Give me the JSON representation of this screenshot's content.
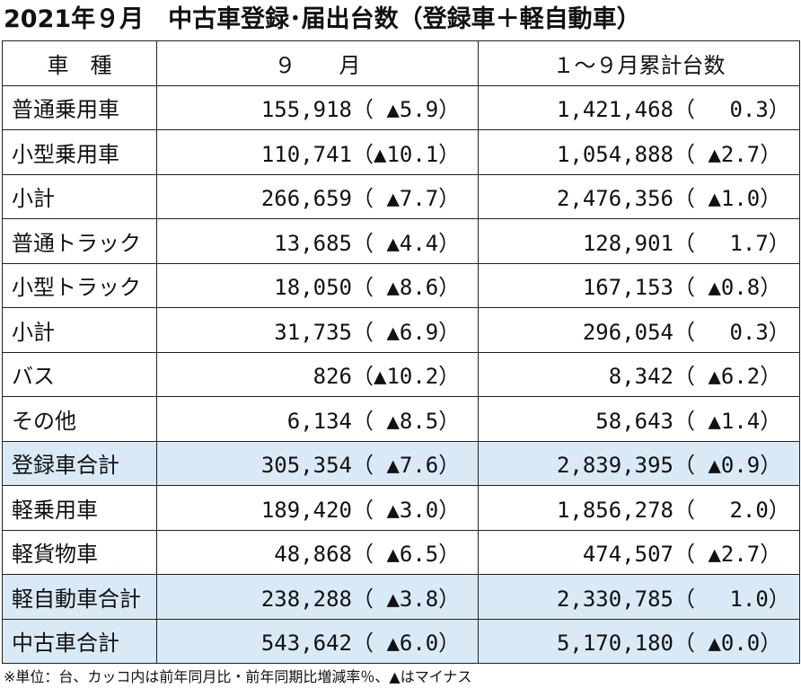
{
  "title": "2021年９月　中古車登録･届出台数（登録車＋軽自動車）",
  "header": {
    "col1": "車　種",
    "col2": "９　　月",
    "col3": "１～９月累計台数"
  },
  "rows": [
    {
      "name": "普通乗用車",
      "m": "155,918",
      "mp": "（ ▲5.9）",
      "c": "1,421,468",
      "cp": "（　 0.3）",
      "highlight": false
    },
    {
      "name": "小型乗用車",
      "m": "110,741",
      "mp": "（▲10.1）",
      "c": "1,054,888",
      "cp": "（ ▲2.7）",
      "highlight": false
    },
    {
      "name": "小計",
      "m": "266,659",
      "mp": "（ ▲7.7）",
      "c": "2,476,356",
      "cp": "（ ▲1.0）",
      "highlight": false
    },
    {
      "name": "普通トラック",
      "m": "13,685",
      "mp": "（ ▲4.4）",
      "c": "128,901",
      "cp": "（　 1.7）",
      "highlight": false
    },
    {
      "name": "小型トラック",
      "m": "18,050",
      "mp": "（ ▲8.6）",
      "c": "167,153",
      "cp": "（ ▲0.8）",
      "highlight": false
    },
    {
      "name": "小計",
      "m": "31,735",
      "mp": "（ ▲6.9）",
      "c": "296,054",
      "cp": "（　 0.3）",
      "highlight": false
    },
    {
      "name": "バス",
      "m": "826",
      "mp": "（▲10.2）",
      "c": "8,342",
      "cp": "（ ▲6.2）",
      "highlight": false
    },
    {
      "name": "その他",
      "m": "6,134",
      "mp": "（ ▲8.5）",
      "c": "58,643",
      "cp": "（ ▲1.4）",
      "highlight": false
    },
    {
      "name": "登録車合計",
      "m": "305,354",
      "mp": "（ ▲7.6）",
      "c": "2,839,395",
      "cp": "（ ▲0.9）",
      "highlight": true
    },
    {
      "name": "軽乗用車",
      "m": "189,420",
      "mp": "（ ▲3.0）",
      "c": "1,856,278",
      "cp": "（　 2.0）",
      "highlight": false
    },
    {
      "name": "軽貨物車",
      "m": "48,868",
      "mp": "（ ▲6.5）",
      "c": "474,507",
      "cp": "（ ▲2.7）",
      "highlight": false
    },
    {
      "name": "軽自動車合計",
      "m": "238,288",
      "mp": "（ ▲3.8）",
      "c": "2,330,785",
      "cp": "（　 1.0）",
      "highlight": true
    },
    {
      "name": "中古車合計",
      "m": "543,642",
      "mp": "（ ▲6.0）",
      "c": "5,170,180",
      "cp": "（ ▲0.0）",
      "highlight": true
    }
  ],
  "note": "※単位：台、カッコ内は前年同月比・前年同期比増減率％、▲はマイナス",
  "colors": {
    "highlight_row": "#d9e9f6",
    "border": "#222222",
    "text": "#111111"
  }
}
